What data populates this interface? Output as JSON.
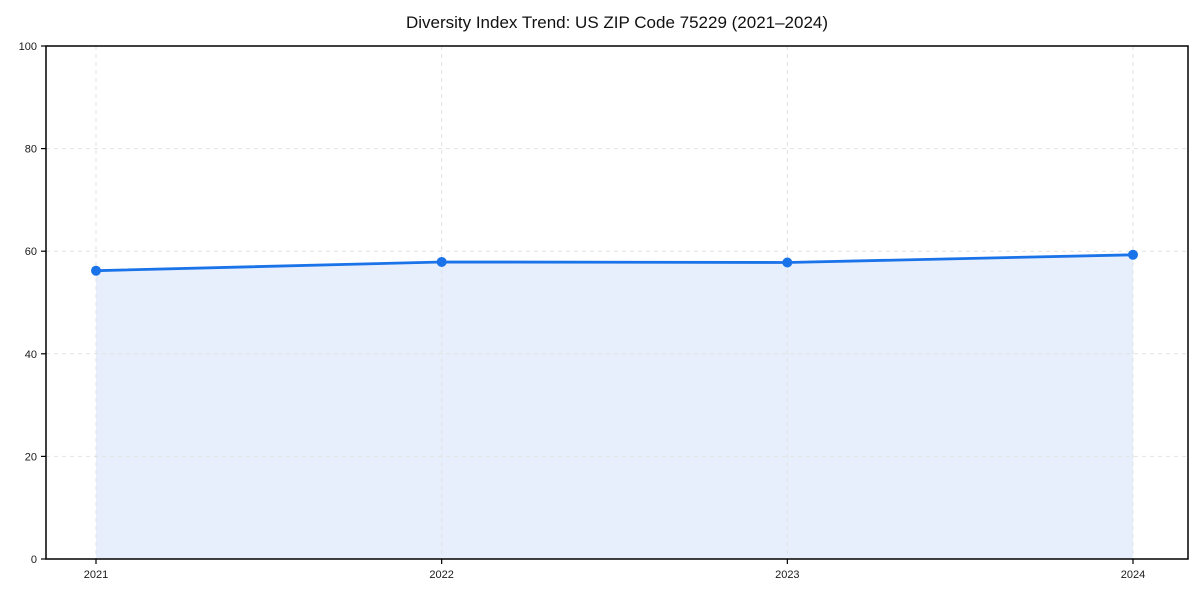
{
  "chart_data": {
    "type": "line",
    "title": "Diversity Index Trend: US ZIP Code 75229 (2021–2024)",
    "categories": [
      "2021",
      "2022",
      "2023",
      "2024"
    ],
    "series": [
      {
        "name": "Diversity Index",
        "values": [
          56.2,
          57.9,
          57.8,
          59.3
        ]
      }
    ],
    "xlabel": "",
    "ylabel": "",
    "ylim": [
      0,
      100
    ],
    "yticks": [
      0,
      20,
      40,
      60,
      80,
      100
    ],
    "grid": true,
    "grid_style": "dashed",
    "legend": "none",
    "area_fill": true,
    "marker": "circle",
    "colors": {
      "line": "#1a73e8",
      "marker": "#1a73e8",
      "area_fill": "#e8effc",
      "grid": "#e2e2e2",
      "axis": "#000000",
      "tick_label": "#1a1a1a",
      "title": "#111111",
      "background": "#ffffff"
    }
  }
}
